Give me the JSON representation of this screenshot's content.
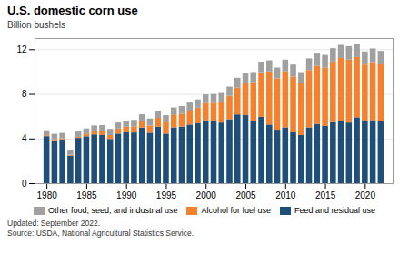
{
  "chart_data": {
    "type": "bar",
    "stacked": true,
    "title": "U.S. domestic corn use",
    "ylabel": "Billion bushels",
    "annotations": [
      "Updated: September 2022.",
      "Source: USDA, National Agricultural Statistics Service."
    ],
    "x": [
      1980,
      1981,
      1982,
      1983,
      1984,
      1985,
      1986,
      1987,
      1988,
      1989,
      1990,
      1991,
      1992,
      1993,
      1994,
      1995,
      1996,
      1997,
      1998,
      1999,
      2000,
      2001,
      2002,
      2003,
      2004,
      2005,
      2006,
      2007,
      2008,
      2009,
      2010,
      2011,
      2012,
      2013,
      2014,
      2015,
      2016,
      2017,
      2018,
      2019,
      2020,
      2021,
      2022
    ],
    "series": [
      {
        "name": "Feed and residual use",
        "color": "#1F4E79",
        "values": [
          4.21,
          3.84,
          3.93,
          2.47,
          4.05,
          4.2,
          4.37,
          4.31,
          3.96,
          4.44,
          4.55,
          4.54,
          4.97,
          4.52,
          5.05,
          4.44,
          5.0,
          5.06,
          5.25,
          5.36,
          5.63,
          5.56,
          5.43,
          5.73,
          6.16,
          6.09,
          5.59,
          5.94,
          5.25,
          4.79,
          5.0,
          4.55,
          4.31,
          5.0,
          5.31,
          5.12,
          5.47,
          5.6,
          5.43,
          5.9,
          5.6,
          5.65,
          5.55
        ]
      },
      {
        "name": "Alcohol for fuel use",
        "color": "#F4812E",
        "values": [
          0.08,
          0.1,
          0.1,
          0.08,
          0.1,
          0.2,
          0.28,
          0.35,
          0.35,
          0.45,
          0.5,
          0.55,
          0.6,
          0.65,
          0.8,
          1.0,
          1.1,
          1.15,
          1.25,
          1.4,
          1.55,
          1.65,
          1.85,
          2.1,
          2.4,
          2.87,
          3.45,
          4.0,
          4.76,
          4.59,
          5.02,
          5.0,
          4.64,
          5.13,
          5.2,
          5.22,
          5.43,
          5.61,
          5.65,
          5.4,
          5.03,
          5.2,
          5.1
        ]
      },
      {
        "name": "Other food, seed, and industrial use",
        "color": "#A0A0A0",
        "values": [
          0.45,
          0.48,
          0.47,
          0.45,
          0.48,
          0.5,
          0.52,
          0.54,
          0.55,
          0.54,
          0.55,
          0.58,
          0.6,
          0.62,
          0.65,
          0.65,
          0.68,
          0.7,
          0.72,
          0.74,
          0.77,
          0.78,
          0.8,
          0.82,
          0.88,
          0.9,
          0.92,
          0.95,
          1.0,
          0.98,
          1.05,
          1.08,
          1.0,
          1.05,
          1.1,
          1.15,
          1.2,
          1.18,
          1.2,
          1.19,
          1.17,
          1.22,
          1.2
        ]
      }
    ],
    "xlim": [
      1978.5,
      2023.5
    ],
    "xticks": [
      1980,
      1985,
      1990,
      1995,
      2000,
      2005,
      2010,
      2015,
      2020
    ],
    "ylim": [
      0,
      13
    ],
    "yticks": [
      0,
      4,
      8,
      12
    ],
    "grid": true,
    "legend": "bottom"
  }
}
